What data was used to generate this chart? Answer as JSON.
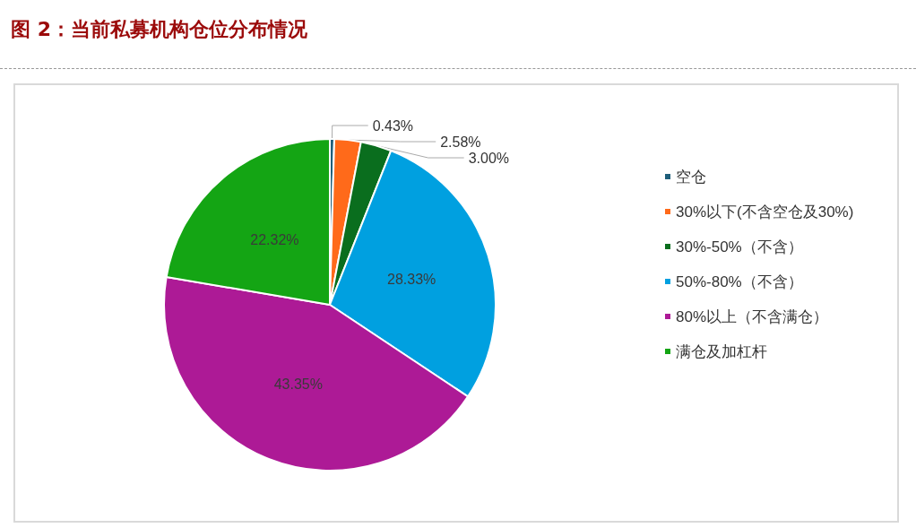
{
  "chart_data": {
    "type": "pie",
    "title": "图 2：当前私募机构仓位分布情况",
    "categories": [
      "空仓",
      "30%以下(不含空仓及30%)",
      "30%-50%（不含）",
      "50%-80%（不含）",
      "80%以上（不含满仓）",
      "满仓及加杠杆"
    ],
    "values": [
      0.43,
      2.58,
      3.0,
      28.33,
      43.35,
      22.32
    ],
    "value_labels": [
      "0.43%",
      "2.58%",
      "3.00%",
      "28.33%",
      "43.35%",
      "22.32%"
    ],
    "colors": [
      "#1f5f7a",
      "#ff6a1a",
      "#0a6e1e",
      "#00a0e0",
      "#ad1a96",
      "#14a514"
    ],
    "legend": "right"
  }
}
